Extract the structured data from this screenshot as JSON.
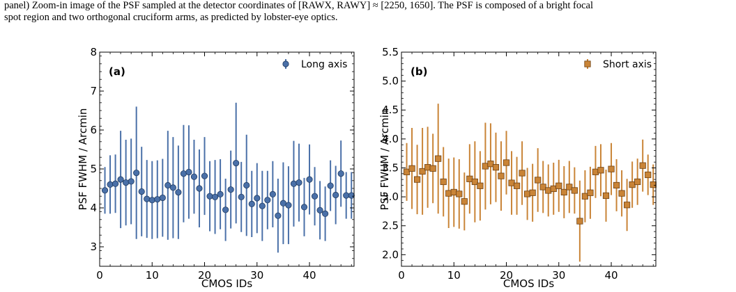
{
  "caption": {
    "line1": "panel) Zoom-in image of the PSF sampled at the detector coordinates of [RAWX, RAWY] ≈ [2250, 1650]. The PSF is composed of a bright focal",
    "line2": "spot region and two orthogonal cruciform arms, as predicted by lobster-eye optics."
  },
  "chart_data": [
    {
      "type": "scatter",
      "panel_label": "(a)",
      "xlabel": "CMOS IDs",
      "ylabel": "PSF FWHM / Arcmin",
      "xlim": [
        0,
        48.5
      ],
      "ylim": [
        2.5,
        8
      ],
      "xticks": [
        0,
        10,
        20,
        30,
        40
      ],
      "yticks": [
        3,
        4,
        5,
        6,
        7,
        8
      ],
      "ytick_labels": [
        "3",
        "4",
        "5",
        "6",
        "7",
        "8"
      ],
      "legend_position": "top-right",
      "color": "#4a70a8",
      "marker": "circle",
      "series": [
        {
          "name": "Long axis",
          "x": [
            1,
            2,
            3,
            4,
            5,
            6,
            7,
            8,
            9,
            10,
            11,
            12,
            13,
            14,
            15,
            16,
            17,
            18,
            19,
            20,
            21,
            22,
            23,
            24,
            25,
            26,
            27,
            28,
            29,
            30,
            31,
            32,
            33,
            34,
            35,
            36,
            37,
            38,
            39,
            40,
            41,
            42,
            43,
            44,
            45,
            46,
            47,
            48
          ],
          "y": [
            4.45,
            4.6,
            4.62,
            4.73,
            4.65,
            4.68,
            4.9,
            4.42,
            4.23,
            4.2,
            4.22,
            4.26,
            4.58,
            4.52,
            4.4,
            4.88,
            4.92,
            4.8,
            4.5,
            4.82,
            4.3,
            4.28,
            4.35,
            3.95,
            4.47,
            5.15,
            4.28,
            4.58,
            4.1,
            4.25,
            4.05,
            4.2,
            4.35,
            3.8,
            4.12,
            4.07,
            4.62,
            4.65,
            4.02,
            4.73,
            4.3,
            3.94,
            3.85,
            4.57,
            4.33,
            4.88,
            4.32,
            4.32
          ],
          "err": [
            0.6,
            0.75,
            0.75,
            1.25,
            1.1,
            1.1,
            1.7,
            1.15,
            1.0,
            1.0,
            1.0,
            1.0,
            1.4,
            1.3,
            1.2,
            1.25,
            1.2,
            0.95,
            1.0,
            1.0,
            0.9,
            0.95,
            0.9,
            0.8,
            1.0,
            1.55,
            0.9,
            1.3,
            0.85,
            0.9,
            0.9,
            0.75,
            0.85,
            0.95,
            1.05,
            1.0,
            1.1,
            1.0,
            0.75,
            0.9,
            0.75,
            0.75,
            0.7,
            0.65,
            0.75,
            0.85,
            0.6,
            0.6
          ]
        }
      ]
    },
    {
      "type": "scatter",
      "panel_label": "(b)",
      "xlabel": "CMOS IDs",
      "ylabel": "PSF FWHM / Arcmin",
      "xlim": [
        0,
        48.5
      ],
      "ylim": [
        1.8,
        5.5
      ],
      "xticks": [
        0,
        10,
        20,
        30,
        40
      ],
      "yticks": [
        2.0,
        2.5,
        3.0,
        3.5,
        4.0,
        4.5,
        5.0,
        5.5
      ],
      "ytick_labels": [
        "2.0",
        "2.5",
        "3.0",
        "3.5",
        "4.0",
        "4.5",
        "5.0",
        "5.5"
      ],
      "legend_position": "top-right",
      "color": "#c98437",
      "marker": "square",
      "series": [
        {
          "name": "Short axis",
          "x": [
            1,
            2,
            3,
            4,
            5,
            6,
            7,
            8,
            9,
            10,
            11,
            12,
            13,
            14,
            15,
            16,
            17,
            18,
            19,
            20,
            21,
            22,
            23,
            24,
            25,
            26,
            27,
            28,
            29,
            30,
            31,
            32,
            33,
            34,
            35,
            36,
            37,
            38,
            39,
            40,
            41,
            42,
            43,
            44,
            45,
            46,
            47,
            48
          ],
          "y": [
            3.43,
            3.49,
            3.3,
            3.44,
            3.51,
            3.49,
            3.66,
            3.26,
            3.06,
            3.08,
            3.05,
            2.92,
            3.31,
            3.26,
            3.19,
            3.53,
            3.57,
            3.51,
            3.36,
            3.59,
            3.24,
            3.19,
            3.41,
            3.05,
            3.07,
            3.29,
            3.17,
            3.11,
            3.14,
            3.19,
            3.08,
            3.17,
            3.11,
            2.58,
            3.01,
            3.07,
            3.43,
            3.46,
            3.02,
            3.48,
            3.2,
            3.06,
            2.86,
            3.21,
            3.26,
            3.54,
            3.38,
            3.21
          ],
          "err": [
            0.5,
            0.7,
            0.6,
            0.75,
            0.7,
            0.6,
            0.95,
            0.6,
            0.6,
            0.6,
            0.6,
            0.5,
            0.6,
            0.7,
            0.6,
            0.75,
            0.7,
            0.6,
            0.6,
            0.55,
            0.55,
            0.5,
            0.55,
            0.45,
            0.5,
            0.55,
            0.45,
            0.45,
            0.45,
            0.45,
            0.45,
            0.45,
            0.4,
            0.7,
            0.45,
            0.45,
            0.45,
            0.45,
            0.45,
            0.45,
            0.45,
            0.4,
            0.45,
            0.4,
            0.4,
            0.45,
            0.35,
            0.35
          ]
        }
      ]
    }
  ]
}
